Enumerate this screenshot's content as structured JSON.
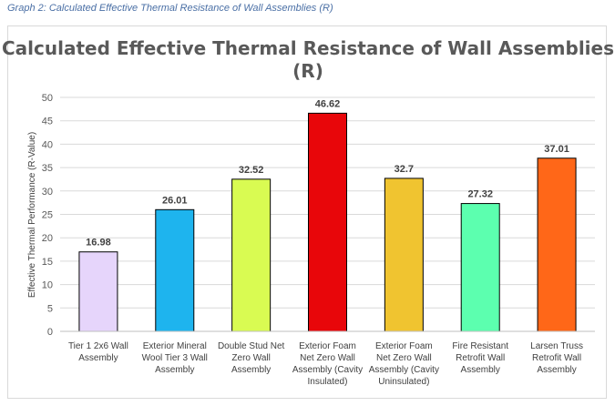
{
  "caption": "Graph 2: Calculated Effective Thermal Resistance of Wall Assemblies (R)",
  "chart_data": {
    "type": "bar",
    "title": [
      "Calculated Effective Thermal Resistance of Wall Assemblies",
      "(R)"
    ],
    "xlabel": "",
    "ylabel": "Effective Thermal Performance (R-Value)",
    "ylim": [
      0,
      50
    ],
    "yticks": [
      "0",
      "5",
      "10",
      "15",
      "20",
      "25",
      "30",
      "35",
      "40",
      "45",
      "50"
    ],
    "grid": true,
    "categories": [
      [
        "Tier 1 2x6 Wall",
        "Assembly"
      ],
      [
        "Exterior Mineral",
        "Wool Tier 3 Wall",
        "Assembly"
      ],
      [
        "Double Stud Net",
        "Zero Wall",
        "Assembly"
      ],
      [
        "Exterior Foam",
        "Net Zero Wall",
        "Assembly (Cavity",
        "Insulated)"
      ],
      [
        "Exterior Foam",
        "Net Zero Wall",
        "Assembly (Cavity",
        "Uninsulated)"
      ],
      [
        "Fire Resistant",
        "Retrofit Wall",
        "Assembly"
      ],
      [
        "Larsen Truss",
        "Retrofit Wall",
        "Assembly"
      ]
    ],
    "values": [
      16.98,
      26.01,
      32.52,
      46.62,
      32.7,
      27.32,
      37.01
    ],
    "value_labels": [
      "16.98",
      "26.01",
      "32.52",
      "46.62",
      "32.7",
      "27.32",
      "37.01"
    ],
    "colors": [
      "#e6d5fb",
      "#1eb4ee",
      "#d9fb52",
      "#e8060a",
      "#f0c430",
      "#5cffaf",
      "#ff6718"
    ]
  }
}
